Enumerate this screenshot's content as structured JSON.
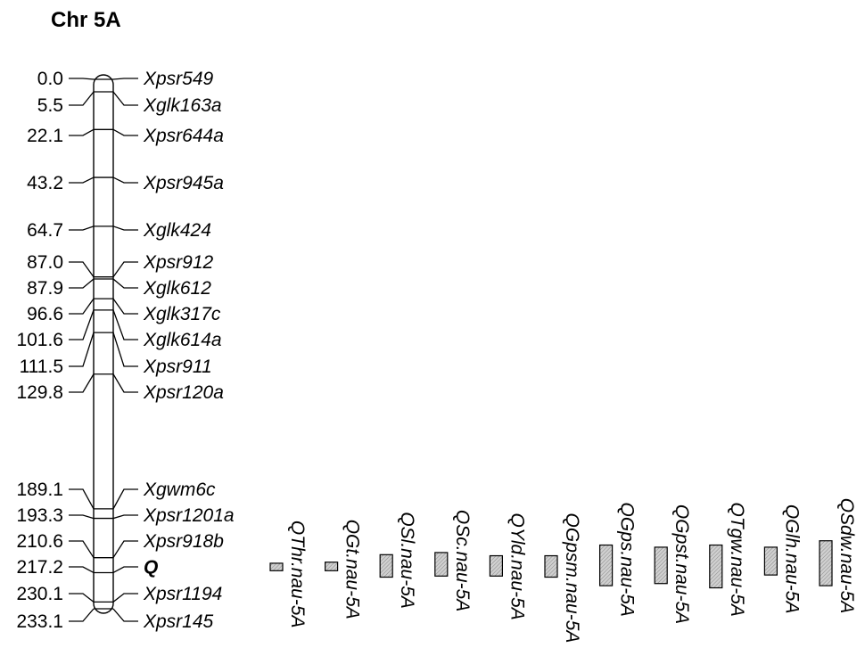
{
  "title": "Chr 5A",
  "chromosome": {
    "markers": [
      {
        "pos": "0.0",
        "cM": 0.0,
        "name": "Xpsr549",
        "bold": false
      },
      {
        "pos": "5.5",
        "cM": 5.5,
        "name": "Xglk163a",
        "bold": false
      },
      {
        "pos": "22.1",
        "cM": 22.1,
        "name": "Xpsr644a",
        "bold": false
      },
      {
        "pos": "43.2",
        "cM": 43.2,
        "name": "Xpsr945a",
        "bold": false
      },
      {
        "pos": "64.7",
        "cM": 64.7,
        "name": "Xglk424",
        "bold": false
      },
      {
        "pos": "87.0",
        "cM": 87.0,
        "name": "Xpsr912",
        "bold": false
      },
      {
        "pos": "87.9",
        "cM": 87.9,
        "name": "Xglk612",
        "bold": false
      },
      {
        "pos": "96.6",
        "cM": 96.6,
        "name": "Xglk317c",
        "bold": false
      },
      {
        "pos": "101.6",
        "cM": 101.6,
        "name": "Xglk614a",
        "bold": false
      },
      {
        "pos": "111.5",
        "cM": 111.5,
        "name": "Xpsr911",
        "bold": false
      },
      {
        "pos": "129.8",
        "cM": 129.8,
        "name": "Xpsr120a",
        "bold": false
      },
      {
        "pos": "189.1",
        "cM": 189.1,
        "name": "Xgwm6c",
        "bold": false
      },
      {
        "pos": "193.3",
        "cM": 193.3,
        "name": "Xpsr1201a",
        "bold": false
      },
      {
        "pos": "210.6",
        "cM": 210.6,
        "name": "Xpsr918b",
        "bold": false
      },
      {
        "pos": "217.2",
        "cM": 217.2,
        "name": "Q",
        "bold": true
      },
      {
        "pos": "230.1",
        "cM": 230.1,
        "name": "Xpsr1194",
        "bold": false
      },
      {
        "pos": "233.1",
        "cM": 233.1,
        "name": "Xpsr145",
        "bold": false
      }
    ]
  },
  "qtls": [
    {
      "name": "QThr.nau-5A",
      "from_cM": 215.5,
      "to_cM": 219.0
    },
    {
      "name": "QGt.nau-5A",
      "from_cM": 215.0,
      "to_cM": 219.0
    },
    {
      "name": "QSl.nau-5A",
      "from_cM": 211.5,
      "to_cM": 222.0
    },
    {
      "name": "QSc.nau-5A",
      "from_cM": 210.5,
      "to_cM": 221.5
    },
    {
      "name": "QYld.nau-5A",
      "from_cM": 212.0,
      "to_cM": 221.5
    },
    {
      "name": "QGpsm.nau-5A",
      "from_cM": 212.0,
      "to_cM": 222.0
    },
    {
      "name": "QGps.nau-5A",
      "from_cM": 207.0,
      "to_cM": 226.0
    },
    {
      "name": "QGpst.nau-5A",
      "from_cM": 208.0,
      "to_cM": 225.0
    },
    {
      "name": "QTgw.nau-5A",
      "from_cM": 207.0,
      "to_cM": 227.0
    },
    {
      "name": "QGlh.nau-5A",
      "from_cM": 208.0,
      "to_cM": 221.0
    },
    {
      "name": "QSdw.nau-5A",
      "from_cM": 205.0,
      "to_cM": 226.0
    }
  ],
  "colors": {
    "qtl_fill": "#c8c8c8",
    "line": "#000000"
  }
}
